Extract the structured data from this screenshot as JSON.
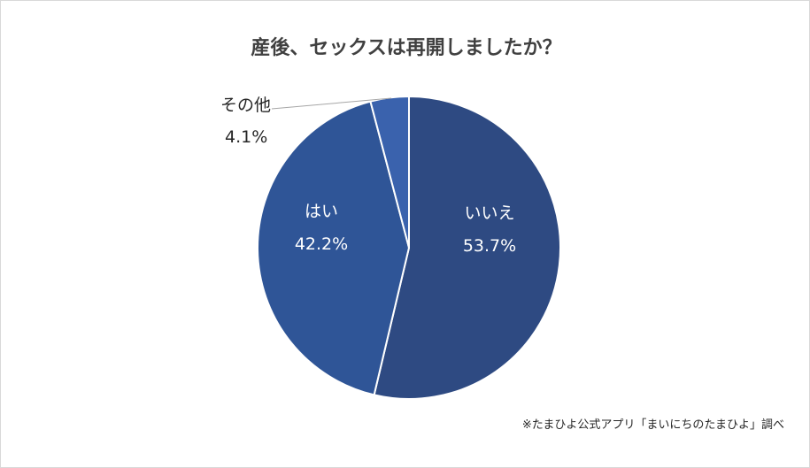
{
  "chart_data": {
    "type": "pie",
    "title": "産後、セックスは再開しましたか？",
    "slices": [
      {
        "label": "いいえ",
        "value": 53.7,
        "value_label": "53.7%",
        "color": "#2e4a82"
      },
      {
        "label": "はい",
        "value": 42.2,
        "value_label": "42.2%",
        "color": "#2f5597"
      },
      {
        "label": "その他",
        "value": 4.1,
        "value_label": "4.1%",
        "color": "#3a62ad"
      }
    ],
    "start_angle_deg": 0,
    "direction": "clockwise",
    "legend": "none",
    "source_note": "※たまひよ公式アプリ「まいにちのたまひよ」調べ"
  }
}
